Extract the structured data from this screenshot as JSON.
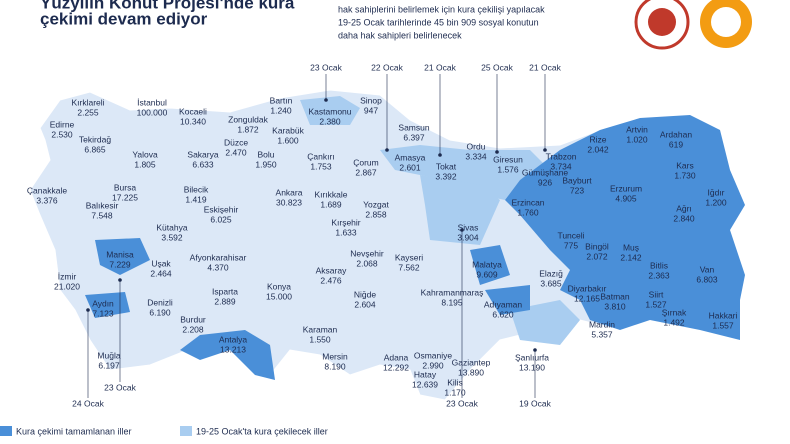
{
  "header": {
    "title_lines": [
      "Yüzyılın Konut Projesi'nde kura",
      "çekimi devam ediyor"
    ],
    "intro_lines": [
      "hak sahiplerini belirlemek için kura çekilişi yapılacak",
      "19-25 Ocak tarihlerinde 45 bin 909 sosyal konutun",
      "daha hak sahipleri belirlenecek"
    ]
  },
  "provinces": [
    {
      "name": "Kırklareli",
      "value": "2.255"
    },
    {
      "name": "Edirne",
      "value": "2.530"
    },
    {
      "name": "Tekirdağ",
      "value": "6.865"
    },
    {
      "name": "İstanbul",
      "value": "100.000"
    },
    {
      "name": "Kocaeli",
      "value": "10.340"
    },
    {
      "name": "Zonguldak",
      "value": "1.872"
    },
    {
      "name": "Bartın",
      "value": "1.240"
    },
    {
      "name": "Kastamonu",
      "value": "2.380"
    },
    {
      "name": "Sinop",
      "value": "947"
    },
    {
      "name": "Samsun",
      "value": "6.397"
    },
    {
      "name": "Karabük",
      "value": "1.600"
    },
    {
      "name": "Düzce",
      "value": "2.470"
    },
    {
      "name": "Sakarya",
      "value": "6.633"
    },
    {
      "name": "Yalova",
      "value": "1.805"
    },
    {
      "name": "Bolu",
      "value": "1.950"
    },
    {
      "name": "Çankırı",
      "value": "1.753"
    },
    {
      "name": "Çorum",
      "value": "2.867"
    },
    {
      "name": "Amasya",
      "value": "2.601"
    },
    {
      "name": "Tokat",
      "value": "3.392"
    },
    {
      "name": "Ordu",
      "value": "3.334"
    },
    {
      "name": "Giresun",
      "value": "1.576"
    },
    {
      "name": "Trabzon",
      "value": "3.734"
    },
    {
      "name": "Rize",
      "value": "2.042"
    },
    {
      "name": "Artvin",
      "value": "1.020"
    },
    {
      "name": "Ardahan",
      "value": "619"
    },
    {
      "name": "Kars",
      "value": "1.730"
    },
    {
      "name": "Iğdır",
      "value": "1.200"
    },
    {
      "name": "Ağrı",
      "value": "2.840"
    },
    {
      "name": "Erzurum",
      "value": "4.905"
    },
    {
      "name": "Gümüşhane",
      "value": "926"
    },
    {
      "name": "Bayburt",
      "value": "723"
    },
    {
      "name": "Erzincan",
      "value": "1.760"
    },
    {
      "name": "Çanakkale",
      "value": "3.376"
    },
    {
      "name": "Bursa",
      "value": "17.225"
    },
    {
      "name": "Bilecik",
      "value": "1.419"
    },
    {
      "name": "Balıkesir",
      "value": "7.548"
    },
    {
      "name": "Eskişehir",
      "value": "6.025"
    },
    {
      "name": "Ankara",
      "value": "30.823"
    },
    {
      "name": "Kırıkkale",
      "value": "1.689"
    },
    {
      "name": "Kırşehir",
      "value": "1.633"
    },
    {
      "name": "Yozgat",
      "value": "2.858"
    },
    {
      "name": "Sivas",
      "value": "3.904"
    },
    {
      "name": "Kütahya",
      "value": "3.592"
    },
    {
      "name": "Tunceli",
      "value": "775"
    },
    {
      "name": "Bingöl",
      "value": "2.072"
    },
    {
      "name": "Muş",
      "value": "2.142"
    },
    {
      "name": "Bitlis",
      "value": "2.363"
    },
    {
      "name": "Van",
      "value": "6.803"
    },
    {
      "name": "Nevşehir",
      "value": "2.068"
    },
    {
      "name": "Kayseri",
      "value": "7.562"
    },
    {
      "name": "Afyonkarahisar",
      "value": "4.370"
    },
    {
      "name": "Manisa",
      "value": "7.229"
    },
    {
      "name": "Uşak",
      "value": "2.464"
    },
    {
      "name": "Aksaray",
      "value": "2.476"
    },
    {
      "name": "Malatya",
      "value": "9.609"
    },
    {
      "name": "Elazığ",
      "value": "3.685"
    },
    {
      "name": "İzmir",
      "value": "21.020"
    },
    {
      "name": "Kahramanmaraş",
      "value": "8.195"
    },
    {
      "name": "Diyarbakır",
      "value": "12.165"
    },
    {
      "name": "Siirt",
      "value": "1.527"
    },
    {
      "name": "Batman",
      "value": "3.810"
    },
    {
      "name": "Aydın",
      "value": "7.123"
    },
    {
      "name": "Denizli",
      "value": "6.190"
    },
    {
      "name": "Isparta",
      "value": "2.889"
    },
    {
      "name": "Konya",
      "value": "15.000"
    },
    {
      "name": "Niğde",
      "value": "2.604"
    },
    {
      "name": "Adıyaman",
      "value": "6.620"
    },
    {
      "name": "Şırnak",
      "value": "1.492"
    },
    {
      "name": "Hakkari",
      "value": "1.557"
    },
    {
      "name": "Burdur",
      "value": "2.208"
    },
    {
      "name": "Muğla",
      "value": "6.197"
    },
    {
      "name": "Antalya",
      "value": "13.213"
    },
    {
      "name": "Karaman",
      "value": "1.550"
    },
    {
      "name": "Mardin",
      "value": "5.357"
    },
    {
      "name": "Osmaniye",
      "value": "2.990"
    },
    {
      "name": "Gaziantep",
      "value": "13.890"
    },
    {
      "name": "Şanlıurfa",
      "value": "13.190"
    },
    {
      "name": "Mersin",
      "value": "8.190"
    },
    {
      "name": "Adana",
      "value": "12.292"
    },
    {
      "name": "Kilis",
      "value": "1.170"
    },
    {
      "name": "Hatay",
      "value": "12.639"
    }
  ],
  "dates": [
    "23 Ocak",
    "22 Ocak",
    "21 Ocak",
    "25 Ocak",
    "21 Ocak",
    "23 Ocak",
    "24 Ocak",
    "23 Ocak",
    "19 Ocak"
  ],
  "legend": [
    "Kura çekimi tamamlanan iller",
    "19-25 Ocak'ta kura çekilecek iller"
  ]
}
